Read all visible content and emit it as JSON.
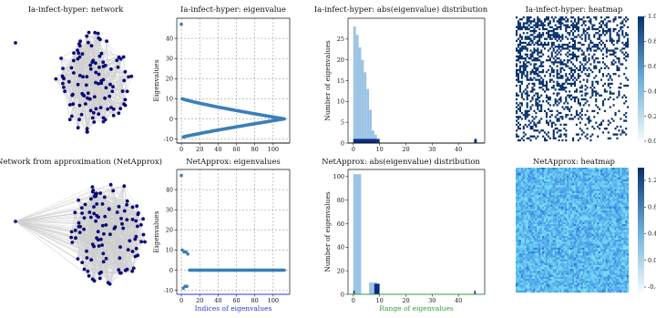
{
  "colors": {
    "node": "#0a0a78",
    "edge": "#cfcfcf",
    "scatter": "#3b7fb8",
    "hist_light": "#9cc3e4",
    "hist_dark": "#0b2c84",
    "axis_blue": "#2b37d8",
    "axis_green": "#3a9a3a"
  },
  "chart_data": [
    {
      "type": "network",
      "title": "Ia-infect-hyper: network",
      "node_count": 113,
      "isolated_node_count": 1
    },
    {
      "type": "scatter",
      "title": "Ia-infect-hyper: eigenvalue",
      "xlabel": "",
      "ylabel": "Eigenvalues",
      "xlim": [
        -5,
        118
      ],
      "ylim": [
        -12,
        50
      ],
      "xticks": [
        0,
        20,
        40,
        60,
        80,
        100
      ],
      "yticks": [
        -10,
        0,
        10,
        20,
        30,
        40
      ],
      "grid": true,
      "points": {
        "outliers": [
          [
            0,
            47
          ]
        ],
        "upper_branch": {
          "x_range": [
            1,
            112
          ],
          "y_range": [
            10,
            0
          ]
        },
        "lower_branch": {
          "x_range": [
            2,
            112
          ],
          "y_range": [
            -9,
            0
          ]
        }
      }
    },
    {
      "type": "histogram",
      "title": "Ia-infect-hyper: abs(eigenvalue) distribution",
      "xlabel": "",
      "ylabel": "Number of eigenvalues",
      "xlim": [
        -2,
        50
      ],
      "ylim": [
        0,
        30
      ],
      "xticks": [
        0,
        10,
        20,
        30,
        40
      ],
      "yticks": [
        0,
        5,
        10,
        15,
        20,
        25
      ],
      "bins_light": [
        {
          "x0": 0,
          "x1": 1,
          "count": 28
        },
        {
          "x0": 1,
          "x1": 2,
          "count": 26
        },
        {
          "x0": 2,
          "x1": 3,
          "count": 23
        },
        {
          "x0": 3,
          "x1": 4,
          "count": 20
        },
        {
          "x0": 4,
          "x1": 5,
          "count": 17
        },
        {
          "x0": 5,
          "x1": 6,
          "count": 13
        },
        {
          "x0": 6,
          "x1": 7,
          "count": 8
        },
        {
          "x0": 7,
          "x1": 8,
          "count": 3
        },
        {
          "x0": 8,
          "x1": 9,
          "count": 2
        },
        {
          "x0": 9,
          "x1": 10,
          "count": 1
        },
        {
          "x0": 46,
          "x1": 47,
          "count": 1
        }
      ],
      "bins_dark": [
        {
          "x0": 0,
          "x1": 9,
          "count": 1
        },
        {
          "x0": 9,
          "x1": 10,
          "count": 1
        },
        {
          "x0": 46,
          "x1": 47,
          "count": 1
        }
      ]
    },
    {
      "type": "heatmap",
      "title": "Ia-infect-hyper: heatmap",
      "colorbar_ticks": [
        "0.0",
        "0.2",
        "0.4",
        "0.6",
        "0.8",
        "1.0"
      ],
      "style": "binary"
    },
    {
      "type": "network",
      "title": "Network from approximation (NetApprox)",
      "node_count": 113,
      "isolated_node_count": 1
    },
    {
      "type": "scatter",
      "title": "NetApprox: eigenvalues",
      "xlabel": "Indices of eigenvalues",
      "ylabel": "Eigenvalues",
      "xlim": [
        -5,
        118
      ],
      "ylim": [
        -12,
        50
      ],
      "xticks": [
        0,
        20,
        40,
        60,
        80,
        100
      ],
      "yticks": [
        -10,
        0,
        10,
        20,
        30,
        40
      ],
      "grid": true,
      "points": {
        "outliers": [
          [
            0,
            47
          ],
          [
            1,
            10
          ],
          [
            3,
            9
          ],
          [
            5,
            9
          ],
          [
            7,
            8
          ],
          [
            2,
            -9
          ],
          [
            4,
            -8
          ],
          [
            6,
            -8
          ]
        ],
        "flat": {
          "x_range": [
            9,
            112
          ],
          "y": 0
        }
      }
    },
    {
      "type": "histogram",
      "title": "NetApprox: abs(eigenvalue) distribution",
      "xlabel": "Range of eigenvalues",
      "ylabel": "Number of eigenvalues",
      "xlim": [
        -2,
        50
      ],
      "ylim": [
        0,
        106
      ],
      "xticks": [
        0,
        10,
        20,
        30,
        40
      ],
      "yticks": [
        0,
        20,
        40,
        60,
        80,
        100
      ],
      "bins_light": [
        {
          "x0": 0,
          "x1": 3,
          "count": 102
        },
        {
          "x0": 3,
          "x1": 6,
          "count": 0
        },
        {
          "x0": 6,
          "x1": 9,
          "count": 10
        },
        {
          "x0": 9,
          "x1": 10,
          "count": 2
        },
        {
          "x0": 46,
          "x1": 47,
          "count": 1
        }
      ],
      "bins_dark": [
        {
          "x0": 0,
          "x1": 0.5,
          "count": 3
        },
        {
          "x0": 8,
          "x1": 10,
          "count": 9
        },
        {
          "x0": 46,
          "x1": 46.5,
          "count": 3
        }
      ]
    },
    {
      "type": "heatmap",
      "title": "NetApprox: heatmap",
      "colorbar_ticks": [
        "-0.4",
        "0.0",
        "0.4",
        "0.8",
        "1.2"
      ],
      "style": "continuous"
    }
  ]
}
